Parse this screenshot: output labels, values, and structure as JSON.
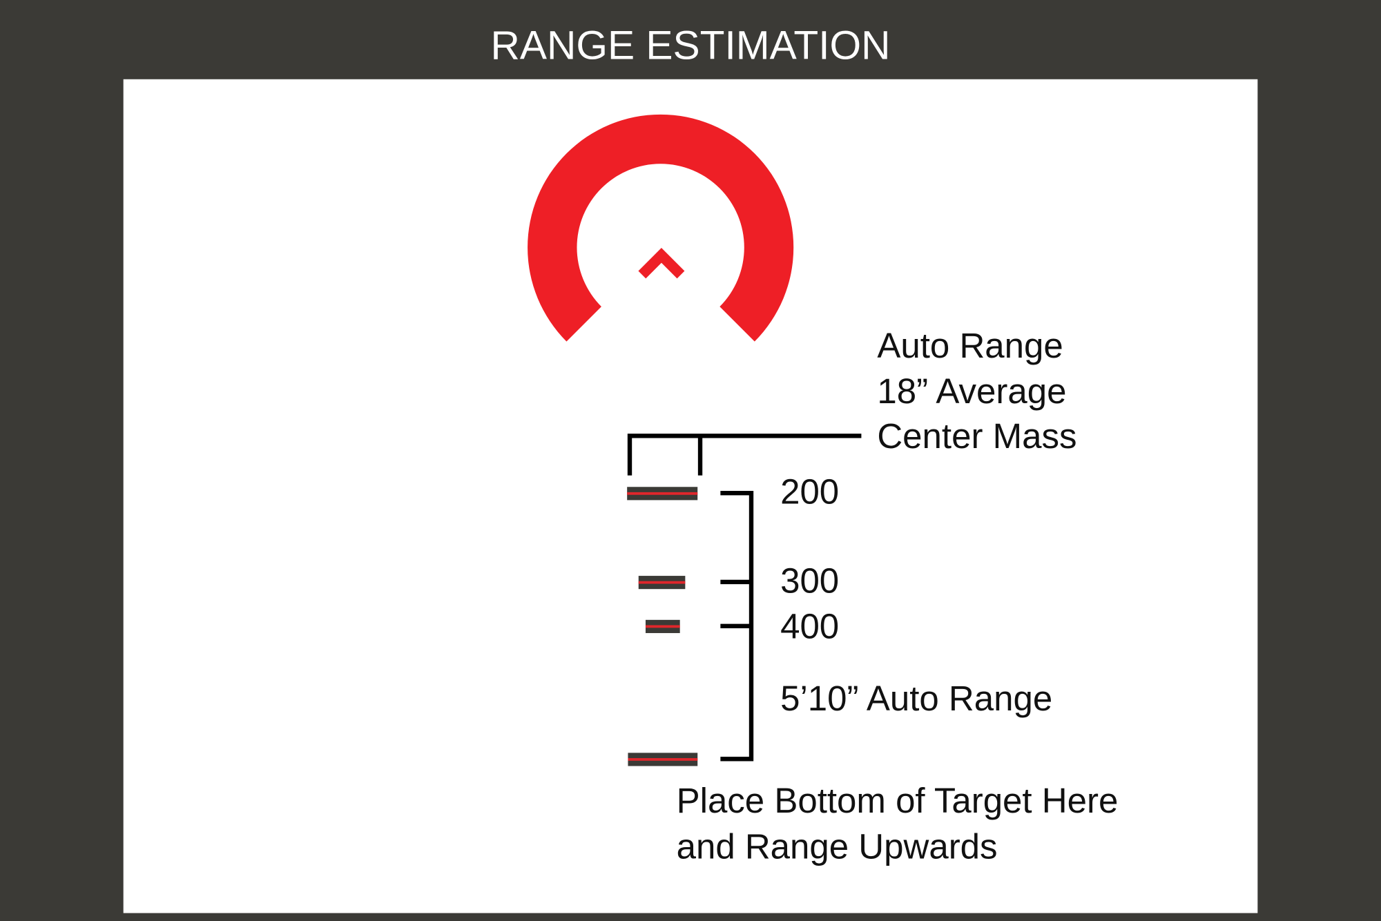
{
  "title": "RANGE ESTIMATION",
  "colors": {
    "background": "#3b3a36",
    "panel": "#ffffff",
    "reticle": "#ee1f26",
    "bar": "#3b3a36",
    "bar_line": "#e0262b",
    "ink": "#111111"
  },
  "top_bracket_label": [
    "Auto Range",
    "18” Average",
    "Center Mass"
  ],
  "ranges": [
    "200",
    "300",
    "400"
  ],
  "height_label": "5’10” Auto Range",
  "bottom_label": [
    "Place Bottom of Target Here",
    "and Range Upwards"
  ]
}
